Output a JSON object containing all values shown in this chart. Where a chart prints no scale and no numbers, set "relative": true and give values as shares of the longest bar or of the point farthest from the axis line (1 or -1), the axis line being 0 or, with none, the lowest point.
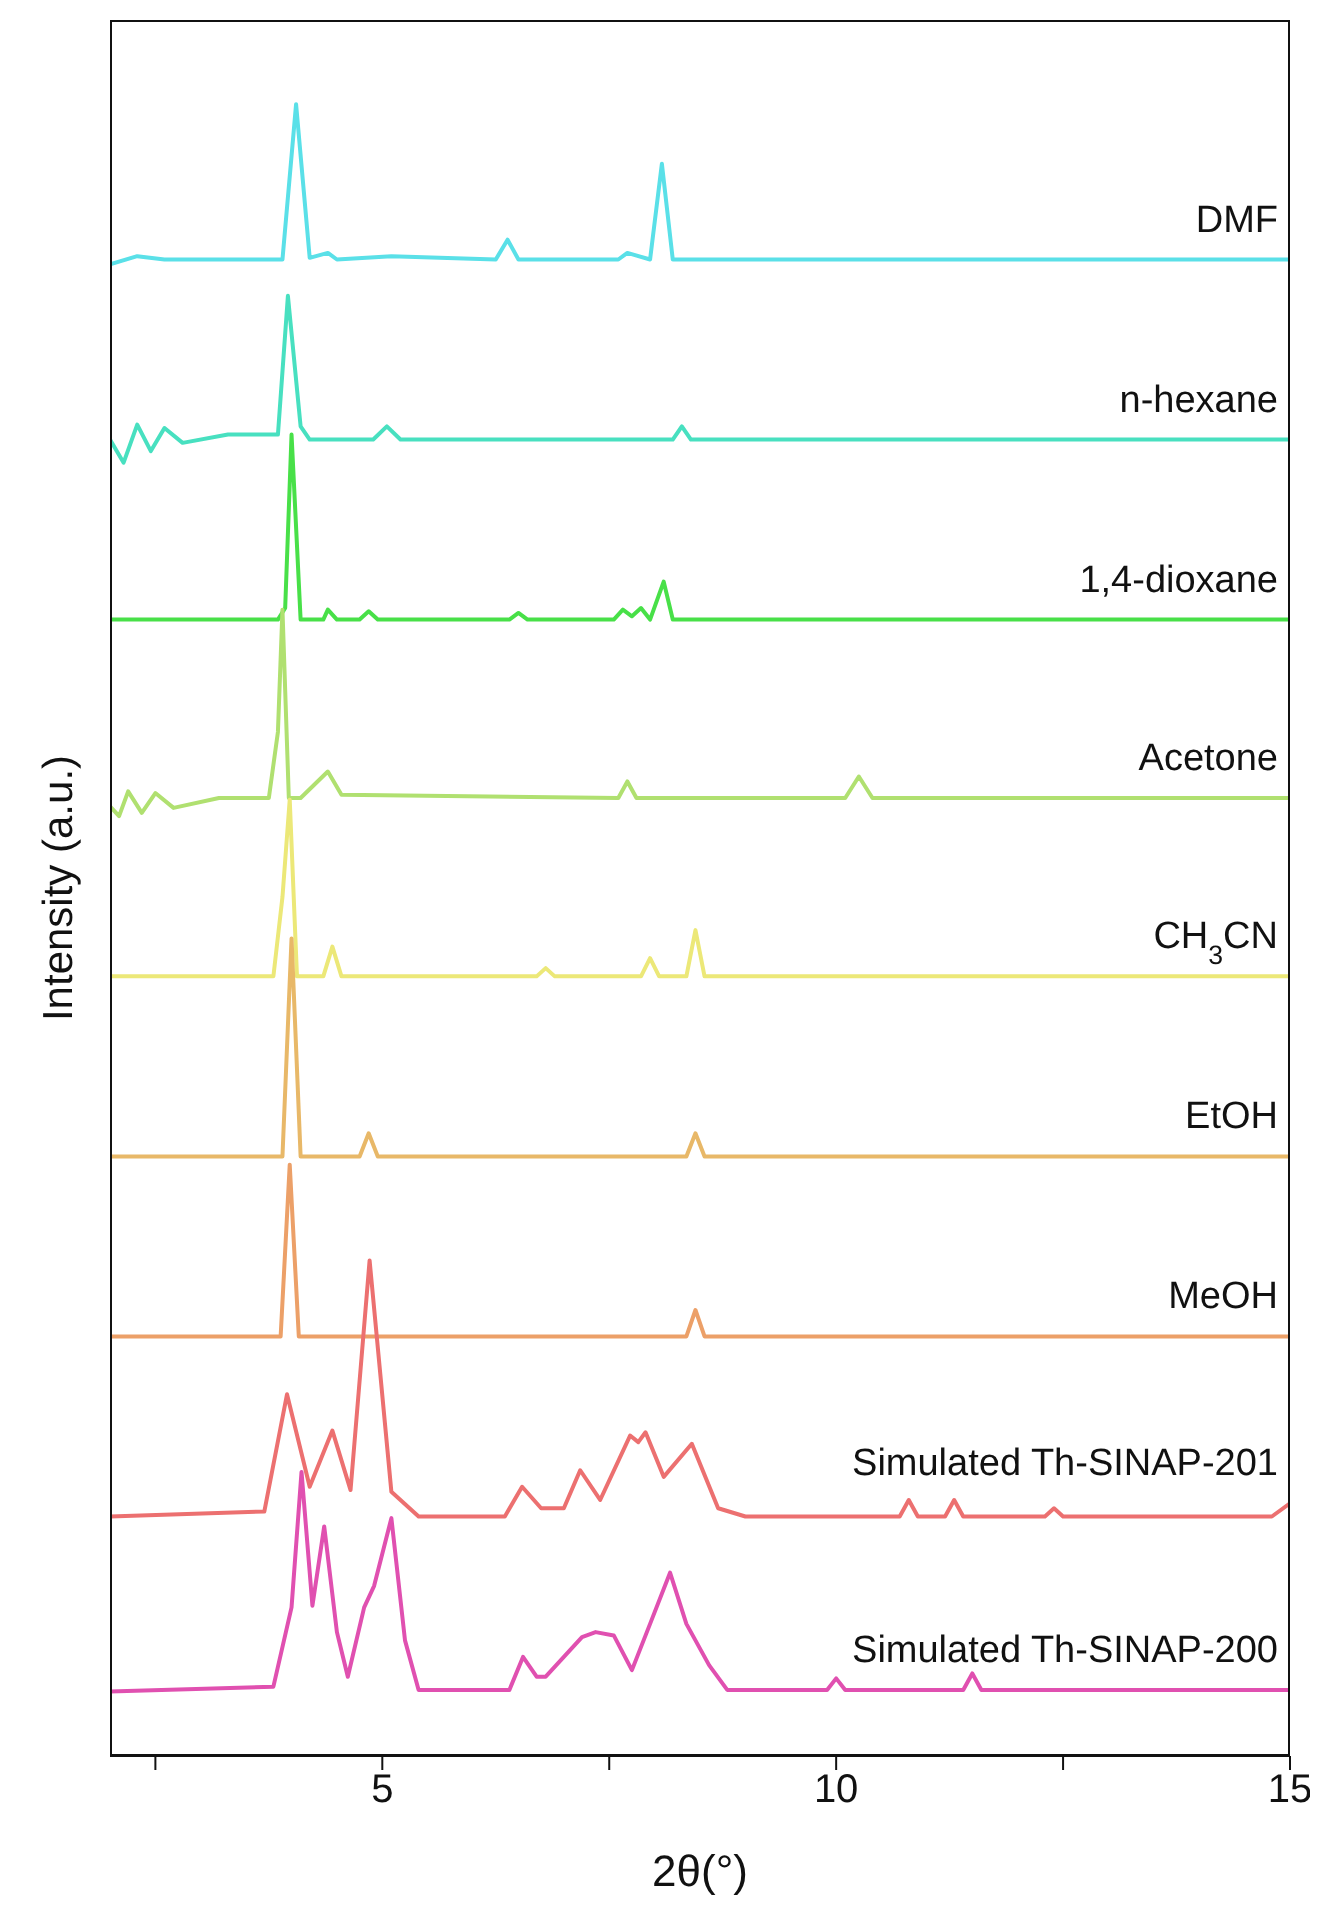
{
  "chart_data": {
    "type": "line",
    "relative": true,
    "xlabel": "2θ(°)",
    "ylabel": "Intensity (a.u.)",
    "xlim": [
      2,
      15
    ],
    "xticks": [
      {
        "value": 2.5,
        "label": null
      },
      5,
      {
        "value": 7.5,
        "label": null
      },
      10,
      {
        "value": 12.5,
        "label": null
      },
      15
    ],
    "marker": "none",
    "line_style": "solid",
    "series": [
      {
        "name": "DMF",
        "color": "#5ae0e8",
        "x": [
          2,
          2.3,
          2.6,
          3,
          3.9,
          4.05,
          4.2,
          4.4,
          4.5,
          5.1,
          6.25,
          6.38,
          6.5,
          7.6,
          7.7,
          7.95,
          8.08,
          8.2,
          15
        ],
        "values": [
          0.903,
          0.908,
          0.906,
          0.906,
          0.906,
          1.0,
          0.907,
          0.91,
          0.906,
          0.908,
          0.906,
          0.918,
          0.906,
          0.906,
          0.91,
          0.906,
          0.964,
          0.906,
          0.906
        ]
      },
      {
        "name": "n-hexane",
        "color": "#48e0c0",
        "x": [
          2,
          2.15,
          2.3,
          2.45,
          2.6,
          2.8,
          3.3,
          3.85,
          3.96,
          4.1,
          4.2,
          4.9,
          5.05,
          5.2,
          8.2,
          8.3,
          8.4,
          15
        ],
        "values": [
          0.797,
          0.783,
          0.806,
          0.79,
          0.804,
          0.795,
          0.8,
          0.8,
          0.884,
          0.805,
          0.797,
          0.797,
          0.805,
          0.797,
          0.797,
          0.805,
          0.797,
          0.797
        ]
      },
      {
        "name": "1,4-dioxane",
        "color": "#48e048",
        "x": [
          2,
          3.85,
          3.93,
          4.0,
          4.1,
          4.35,
          4.4,
          4.5,
          4.75,
          4.85,
          4.95,
          6.4,
          6.5,
          6.6,
          7.55,
          7.65,
          7.75,
          7.85,
          7.95,
          8.1,
          8.2,
          15
        ],
        "values": [
          0.688,
          0.688,
          0.695,
          0.8,
          0.688,
          0.688,
          0.694,
          0.688,
          0.688,
          0.693,
          0.688,
          0.688,
          0.692,
          0.688,
          0.688,
          0.694,
          0.69,
          0.695,
          0.688,
          0.711,
          0.688,
          0.688
        ]
      },
      {
        "name": "Acetone",
        "color": "#b0e070",
        "x": [
          2,
          2.1,
          2.2,
          2.35,
          2.5,
          2.7,
          3.2,
          3.75,
          3.85,
          3.9,
          3.97,
          4.1,
          4.4,
          4.55,
          7.6,
          7.7,
          7.8,
          10.1,
          10.25,
          10.4,
          15
        ],
        "values": [
          0.575,
          0.569,
          0.584,
          0.571,
          0.583,
          0.574,
          0.58,
          0.58,
          0.62,
          0.694,
          0.58,
          0.58,
          0.596,
          0.582,
          0.58,
          0.59,
          0.58,
          0.58,
          0.593,
          0.58,
          0.58
        ]
      },
      {
        "name": "CH$_{3}$CN",
        "color": "#ece878",
        "x": [
          2,
          3.8,
          3.9,
          3.98,
          4.06,
          4.35,
          4.45,
          4.55,
          6.7,
          6.8,
          6.9,
          7.85,
          7.95,
          8.05,
          8.35,
          8.45,
          8.55,
          15
        ],
        "values": [
          0.472,
          0.472,
          0.52,
          0.579,
          0.472,
          0.472,
          0.49,
          0.472,
          0.472,
          0.477,
          0.472,
          0.472,
          0.483,
          0.472,
          0.472,
          0.5,
          0.472,
          0.472
        ]
      },
      {
        "name": "EtOH",
        "color": "#e8b868",
        "x": [
          2,
          3.9,
          4.0,
          4.1,
          4.75,
          4.85,
          4.95,
          8.35,
          8.45,
          8.55,
          15
        ],
        "values": [
          0.363,
          0.363,
          0.495,
          0.363,
          0.363,
          0.377,
          0.363,
          0.363,
          0.377,
          0.363,
          0.363
        ]
      },
      {
        "name": "MeOH",
        "color": "#eca068",
        "x": [
          2,
          3.88,
          3.98,
          4.08,
          8.35,
          8.45,
          8.55,
          15
        ],
        "values": [
          0.254,
          0.254,
          0.358,
          0.254,
          0.254,
          0.27,
          0.254,
          0.254
        ]
      },
      {
        "name": "Simulated Th-SINAP-201",
        "color": "#ec7070",
        "x": [
          2,
          3.7,
          3.95,
          4.2,
          4.45,
          4.65,
          4.86,
          5.1,
          5.4,
          6.35,
          6.54,
          6.75,
          7.0,
          7.18,
          7.4,
          7.73,
          7.82,
          7.9,
          8.1,
          8.41,
          8.7,
          9,
          10.7,
          10.8,
          10.9,
          11.2,
          11.3,
          11.4,
          12.3,
          12.4,
          12.5,
          14.8,
          15
        ],
        "values": [
          0.145,
          0.148,
          0.219,
          0.163,
          0.197,
          0.161,
          0.3,
          0.16,
          0.145,
          0.145,
          0.163,
          0.15,
          0.15,
          0.173,
          0.155,
          0.194,
          0.19,
          0.196,
          0.169,
          0.189,
          0.15,
          0.145,
          0.145,
          0.155,
          0.145,
          0.145,
          0.155,
          0.145,
          0.145,
          0.15,
          0.145,
          0.145,
          0.153
        ]
      },
      {
        "name": "Simulated Th-SINAP-200",
        "color": "#e050b0",
        "x": [
          2,
          3.8,
          4.0,
          4.11,
          4.23,
          4.36,
          4.5,
          4.62,
          4.8,
          4.91,
          5.1,
          5.25,
          5.4,
          6.4,
          6.55,
          6.7,
          6.8,
          7.0,
          7.2,
          7.35,
          7.55,
          7.75,
          7.95,
          8.17,
          8.35,
          8.6,
          8.8,
          9.9,
          10.0,
          10.1,
          11.4,
          11.5,
          11.6,
          15
        ],
        "values": [
          0.039,
          0.042,
          0.09,
          0.172,
          0.091,
          0.139,
          0.075,
          0.048,
          0.09,
          0.103,
          0.144,
          0.07,
          0.04,
          0.04,
          0.06,
          0.048,
          0.048,
          0.06,
          0.072,
          0.075,
          0.073,
          0.052,
          0.08,
          0.111,
          0.08,
          0.055,
          0.04,
          0.04,
          0.047,
          0.04,
          0.04,
          0.05,
          0.04,
          0.04
        ]
      }
    ]
  }
}
